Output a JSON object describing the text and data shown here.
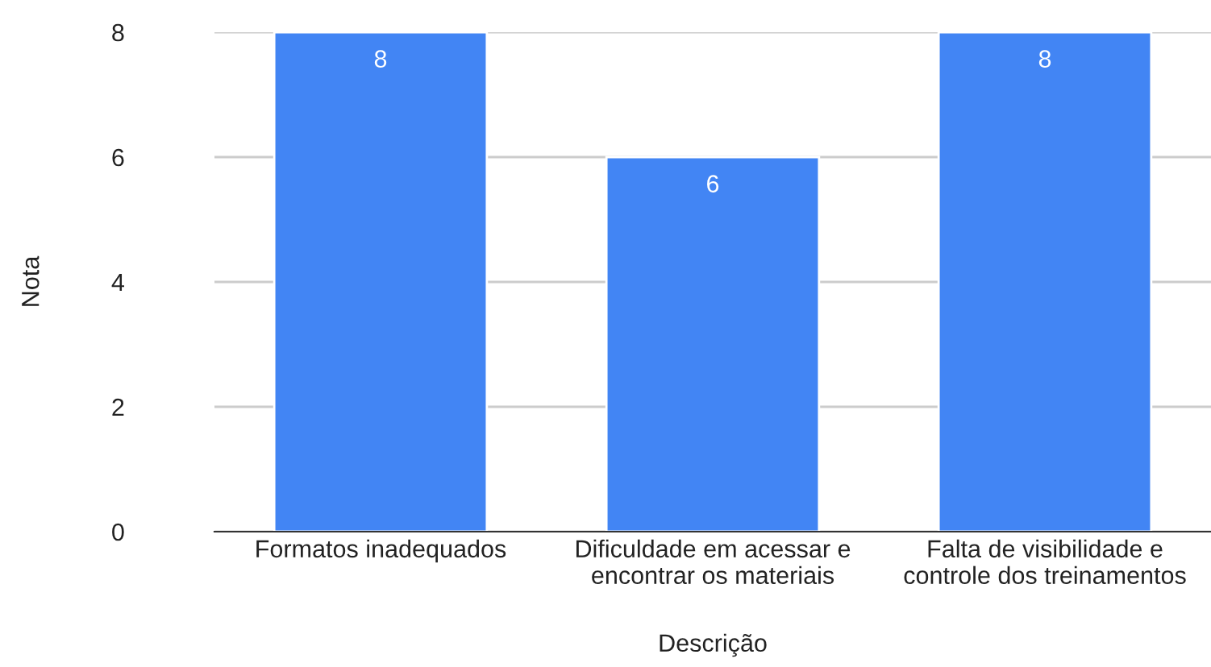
{
  "chart_data": {
    "type": "bar",
    "xlabel": "Descrição",
    "ylabel": "Nota",
    "categories": [
      "Formatos inadequados",
      "Dificuldade em acessar e\nencontrar os materiais",
      "Falta de visibilidade e\ncontrole dos treinamentos"
    ],
    "values": [
      8,
      6,
      8
    ],
    "color": "#4285f4",
    "ylim": [
      0,
      8
    ],
    "yticks": [
      0,
      2,
      4,
      6,
      8
    ],
    "grid": "y",
    "data_labels": true,
    "legend": false
  }
}
